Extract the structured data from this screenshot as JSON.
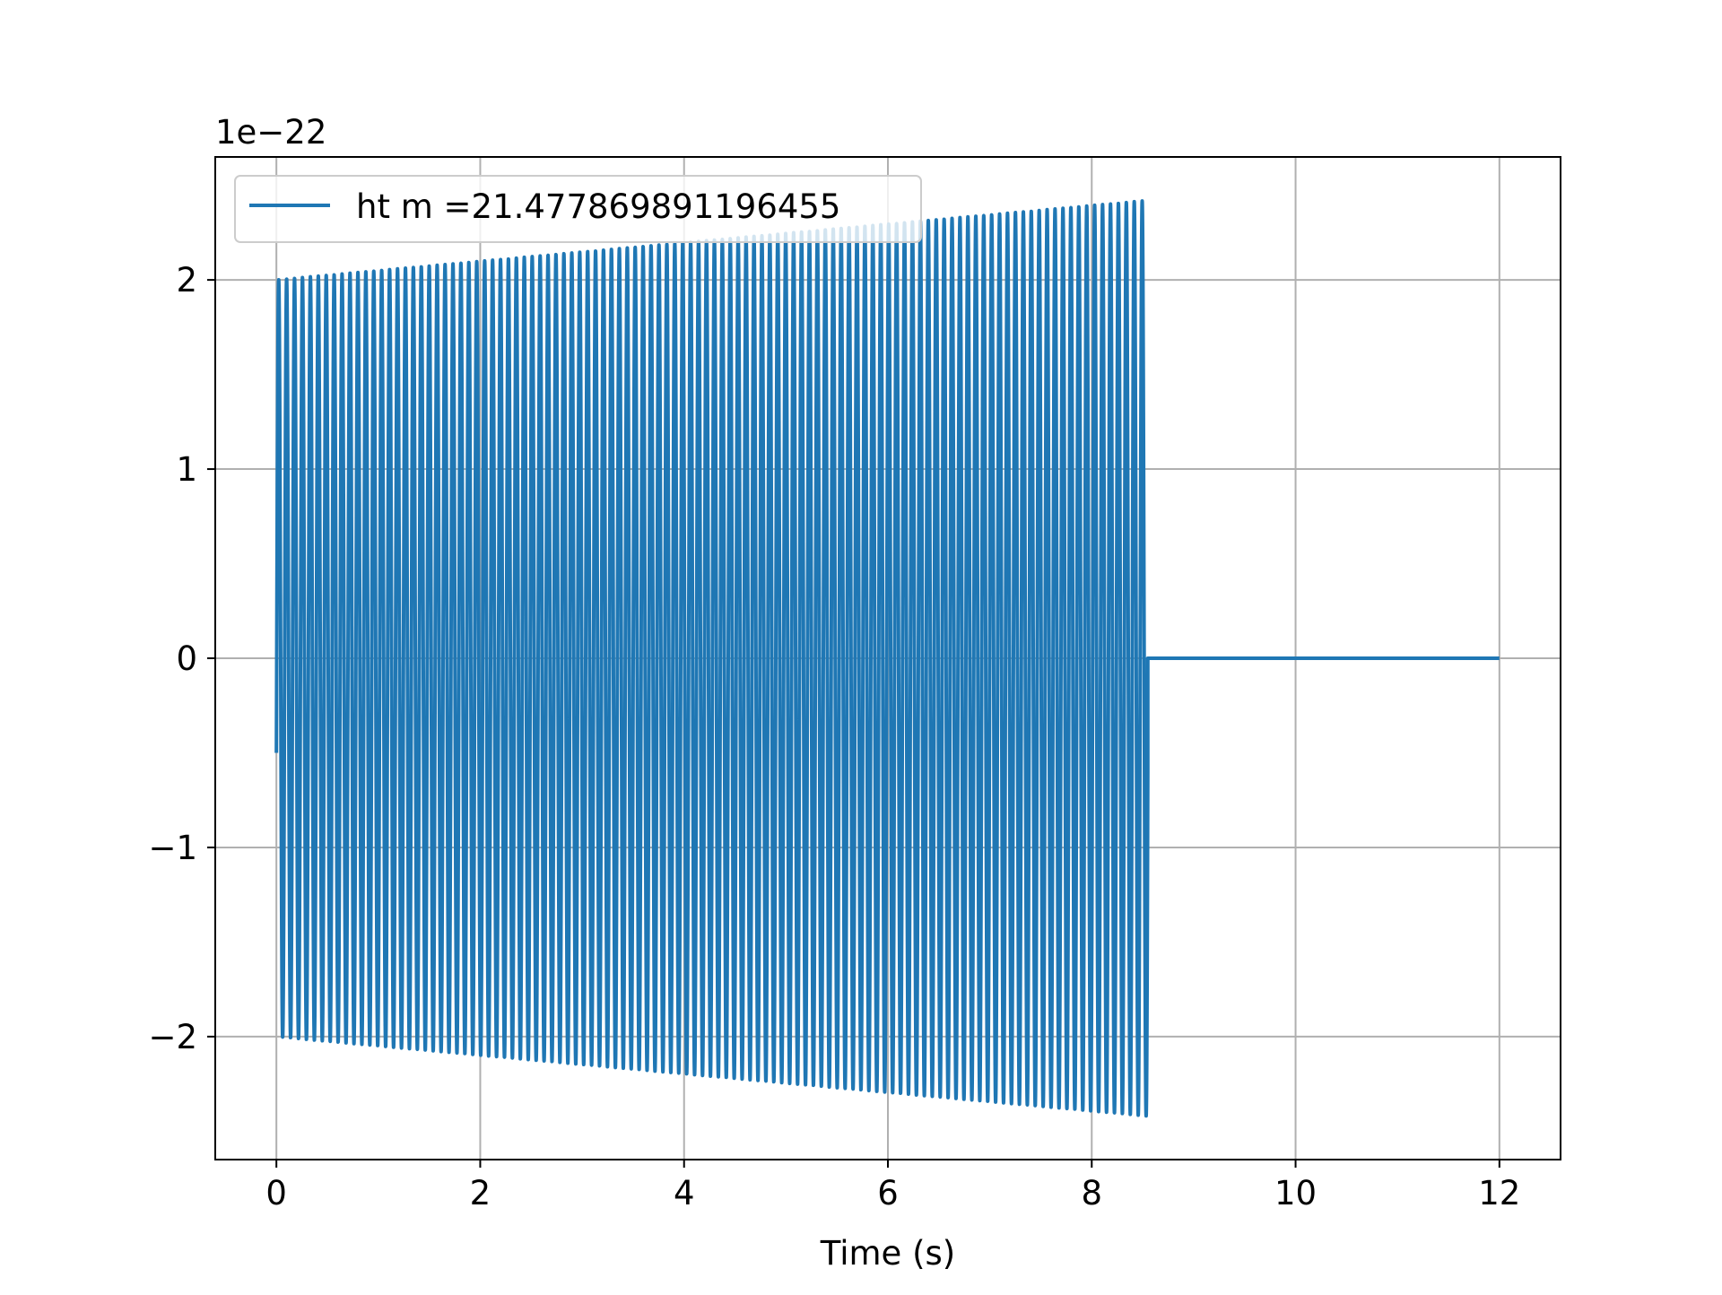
{
  "chart_data": {
    "type": "line",
    "title": "",
    "xlabel": "Time (s)",
    "ylabel": "",
    "y_offset_label": "1e−22",
    "xlim": [
      -0.6,
      12.6
    ],
    "ylim": [
      -2.65,
      2.65
    ],
    "xticks": [
      0,
      2,
      4,
      6,
      8,
      10,
      12
    ],
    "xtick_labels": [
      "0",
      "2",
      "4",
      "6",
      "8",
      "10",
      "12"
    ],
    "yticks": [
      -2,
      -1,
      0,
      1,
      2
    ],
    "ytick_labels": [
      "−2",
      "−1",
      "0",
      "1",
      "2"
    ],
    "grid": true,
    "legend_position": "upper-left",
    "series": [
      {
        "name": "ht m =21.477869891196455",
        "color": "#1f77b4",
        "signal": {
          "t_start": 0,
          "t_end": 8.55,
          "t_flat_end": 12,
          "amplitude_start": 2.0,
          "amplitude_end": 2.42,
          "oscillation_cycles": 110,
          "initial_value": -0.5,
          "flat_value": 0
        }
      }
    ]
  }
}
